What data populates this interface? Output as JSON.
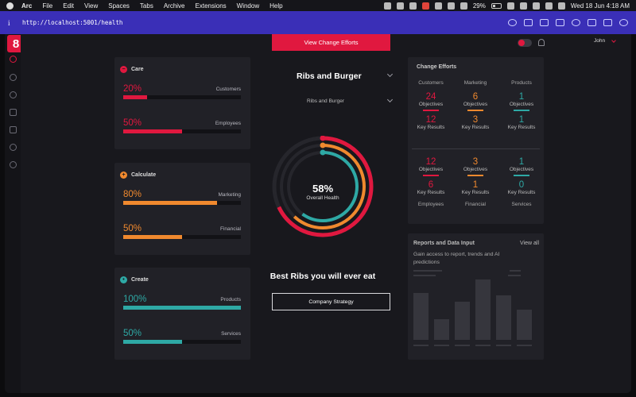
{
  "menubar": {
    "app": "Arc",
    "items": [
      "File",
      "Edit",
      "View",
      "Spaces",
      "Tabs",
      "Archive",
      "Extensions",
      "Window",
      "Help"
    ],
    "battery": "29%",
    "datetime": "Wed 18 Jun  4:18 AM"
  },
  "browser": {
    "url": "http://localhost:5001/health"
  },
  "header": {
    "view_efforts": "View Change Efforts",
    "user": "John",
    "logo": "8"
  },
  "left": [
    {
      "title": "Care",
      "icon": "minus-circle-icon",
      "color": "#e0183f",
      "metrics": [
        {
          "pct": "20%",
          "value": 20,
          "label": "Customers"
        },
        {
          "pct": "50%",
          "value": 50,
          "label": "Employees"
        }
      ]
    },
    {
      "title": "Calculate",
      "icon": "plus-circle-icon",
      "color": "#f0892e",
      "metrics": [
        {
          "pct": "80%",
          "value": 80,
          "label": "Marketing"
        },
        {
          "pct": "50%",
          "value": 50,
          "label": "Financial"
        }
      ]
    },
    {
      "title": "Create",
      "icon": "gear-circle-icon",
      "color": "#2ea9a5",
      "metrics": [
        {
          "pct": "100%",
          "value": 100,
          "label": "Products"
        },
        {
          "pct": "50%",
          "value": 50,
          "label": "Services"
        }
      ]
    }
  ],
  "center": {
    "select1": "Ribs and Burger",
    "select2": "Ribs and Burger",
    "health_pct": "58%",
    "health_label": "Overall Health",
    "rings": [
      {
        "value": 0.68,
        "color": "#e0183f"
      },
      {
        "value": 0.62,
        "color": "#f0892e"
      },
      {
        "value": 0.6,
        "color": "#2ea9a5"
      }
    ],
    "tagline": "Best Ribs you will ever eat",
    "strategy_button": "Company Strategy"
  },
  "change_efforts": {
    "title": "Change Efforts",
    "columns": [
      {
        "header": "Customers",
        "color": "#e0183f",
        "top_obj": "24",
        "top_kr": "12",
        "bot_obj": "12",
        "bot_kr": "6",
        "footer": "Employees"
      },
      {
        "header": "Marketing",
        "color": "#f0892e",
        "top_obj": "6",
        "top_kr": "3",
        "bot_obj": "3",
        "bot_kr": "1",
        "footer": "Financial"
      },
      {
        "header": "Products",
        "color": "#2ea9a5",
        "top_obj": "1",
        "top_kr": "1",
        "bot_obj": "1",
        "bot_kr": "0",
        "footer": "Services"
      }
    ],
    "objectives_label": "Objectives",
    "key_results_label": "Key Results"
  },
  "reports": {
    "title": "Reports and Data Input",
    "view_all": "View all",
    "description": "Gain access to report, trends and AI predictions"
  }
}
